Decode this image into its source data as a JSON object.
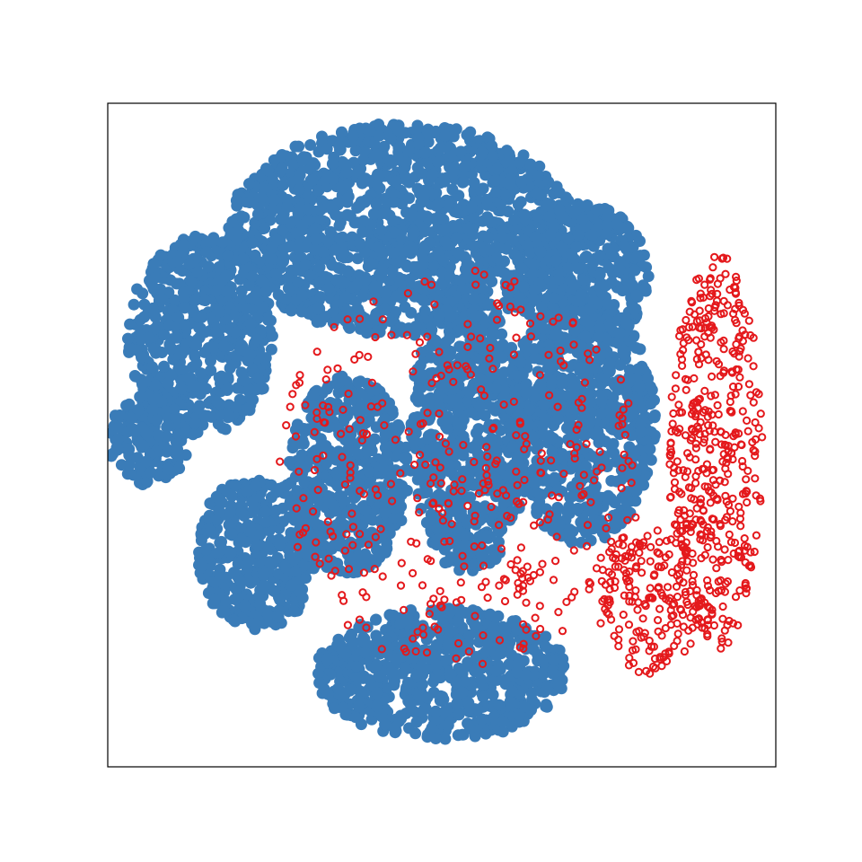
{
  "chart_data": {
    "type": "scatter",
    "title": "",
    "xlabel": "",
    "ylabel": "",
    "xlim": [
      -1,
      1
    ],
    "ylim": [
      -1,
      1
    ],
    "ticks": "none",
    "grid": false,
    "legend": "none",
    "colors": {
      "filled": "#3a7cb8",
      "hollow": "#e4191c"
    },
    "series": [
      {
        "marker": "filled-circle",
        "color": "#3a7cb8",
        "clusters": [
          {
            "id": "upper-mass",
            "cx": -0.12,
            "cy": 0.62,
            "rx": 0.52,
            "ry": 0.32
          },
          {
            "id": "upper-left-lobe",
            "cx": -0.72,
            "cy": 0.3,
            "rx": 0.22,
            "ry": 0.3
          },
          {
            "id": "left-arm",
            "cx": -0.88,
            "cy": -0.02,
            "rx": 0.12,
            "ry": 0.14
          },
          {
            "id": "left-lower",
            "cx": -0.55,
            "cy": -0.35,
            "rx": 0.18,
            "ry": 0.24
          },
          {
            "id": "center-mid",
            "cx": -0.28,
            "cy": -0.12,
            "rx": 0.18,
            "ry": 0.3
          },
          {
            "id": "center-column",
            "cx": 0.08,
            "cy": 0.0,
            "rx": 0.18,
            "ry": 0.42
          },
          {
            "id": "right-mid",
            "cx": 0.42,
            "cy": 0.05,
            "rx": 0.22,
            "ry": 0.38
          },
          {
            "id": "bottom-center",
            "cx": 0.0,
            "cy": -0.72,
            "rx": 0.38,
            "ry": 0.2
          },
          {
            "id": "upper-right",
            "cx": 0.42,
            "cy": 0.48,
            "rx": 0.2,
            "ry": 0.22
          }
        ]
      },
      {
        "marker": "hollow-circle",
        "color": "#e4191c",
        "clusters": [
          {
            "id": "right-strands",
            "cx": 0.82,
            "cy": -0.05,
            "rx": 0.14,
            "ry": 0.6
          },
          {
            "id": "lower-right-strand",
            "cx": 0.62,
            "cy": -0.5,
            "rx": 0.16,
            "ry": 0.22
          },
          {
            "id": "sparse-overlap",
            "cx": 0.05,
            "cy": -0.1,
            "rx": 0.55,
            "ry": 0.6
          }
        ]
      }
    ]
  }
}
